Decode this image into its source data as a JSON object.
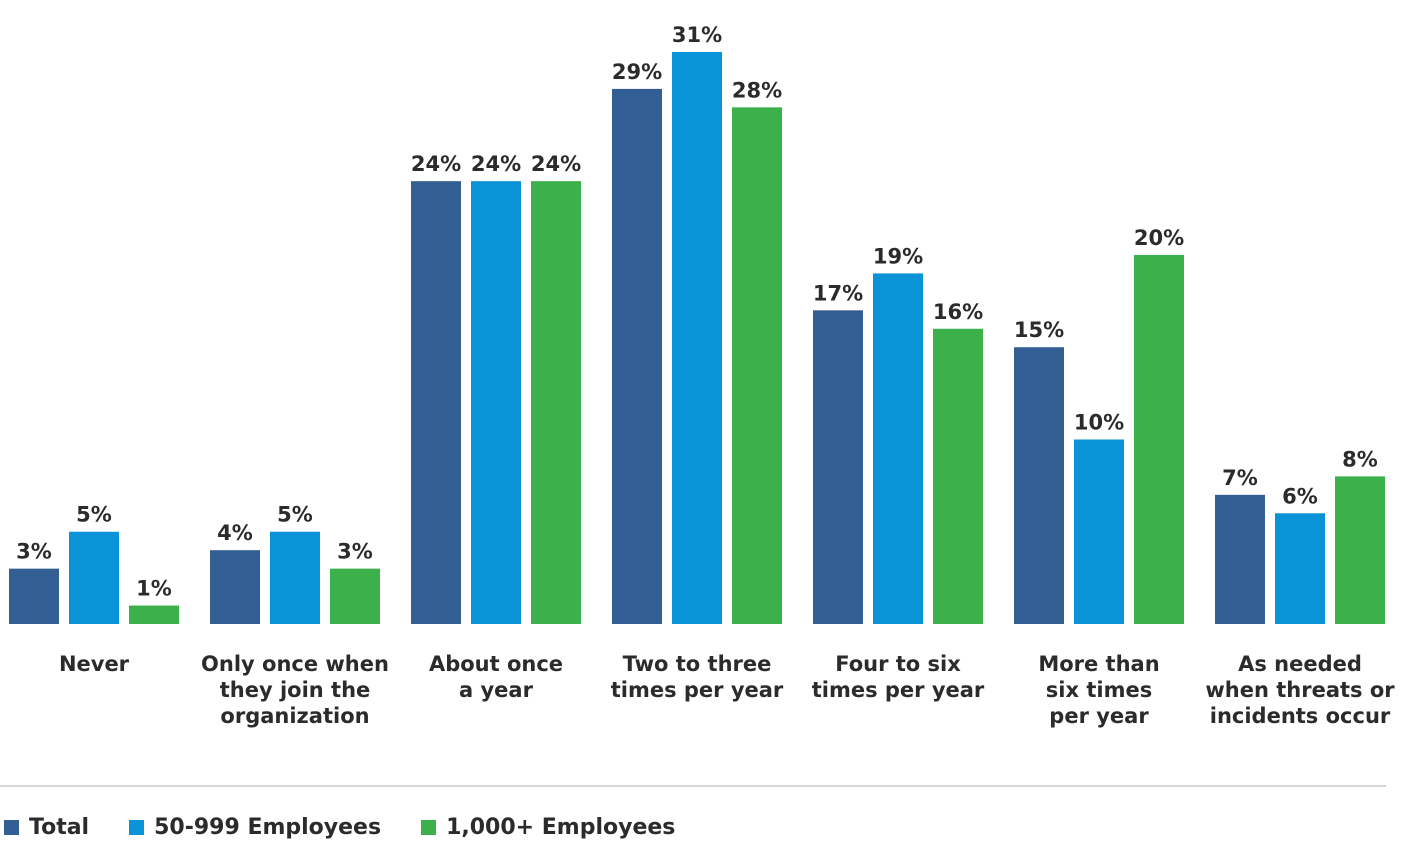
{
  "chart_data": {
    "type": "bar",
    "categories": [
      [
        "Never"
      ],
      [
        "Only once when",
        "they join the",
        "organization"
      ],
      [
        "About once",
        "a year"
      ],
      [
        "Two to three",
        "times per year"
      ],
      [
        "Four to six",
        "times per year"
      ],
      [
        "More than",
        "six times",
        "per year"
      ],
      [
        "As needed",
        "when threats or",
        "incidents occur"
      ]
    ],
    "series": [
      {
        "name": "Total",
        "color": "#335e94",
        "values": [
          3,
          4,
          24,
          29,
          17,
          15,
          7
        ]
      },
      {
        "name": "50-999 Employees",
        "color": "#0a93d6",
        "values": [
          5,
          5,
          24,
          31,
          19,
          10,
          6
        ]
      },
      {
        "name": "1,000+ Employees",
        "color": "#3bb04b",
        "values": [
          1,
          3,
          24,
          28,
          16,
          20,
          8
        ]
      }
    ],
    "value_suffix": "%",
    "ylim": [
      0,
      31
    ],
    "grid": false,
    "legend_position": "bottom-left",
    "divider_color": "#cccccc"
  }
}
